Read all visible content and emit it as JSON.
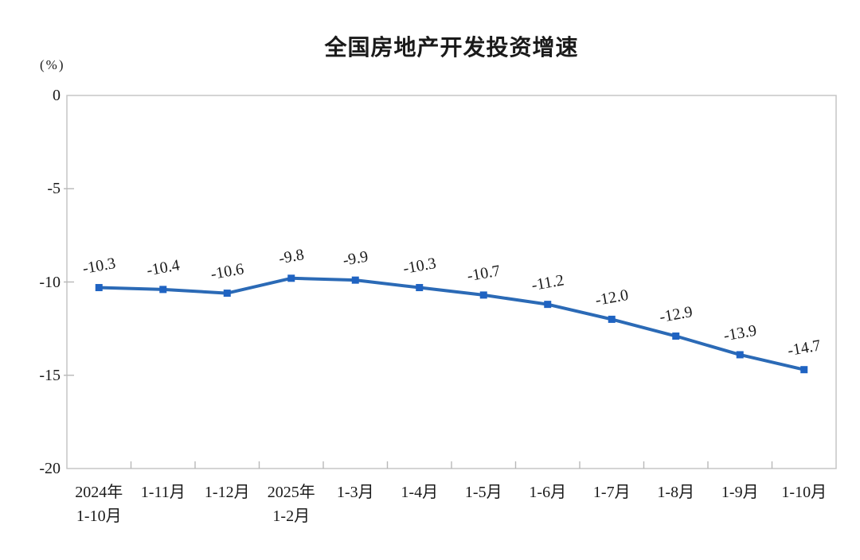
{
  "page": {
    "background_color": "#ffffff"
  },
  "chart_data": {
    "type": "line",
    "title": "全国房地产开发投资增速",
    "ylabel": "(%)",
    "xlabel": "",
    "categories": [
      {
        "line1": "2024年",
        "line2": "1-10月"
      },
      {
        "line1": "1-11月",
        "line2": ""
      },
      {
        "line1": "1-12月",
        "line2": ""
      },
      {
        "line1": "2025年",
        "line2": "1-2月"
      },
      {
        "line1": "1-3月",
        "line2": ""
      },
      {
        "line1": "1-4月",
        "line2": ""
      },
      {
        "line1": "1-5月",
        "line2": ""
      },
      {
        "line1": "1-6月",
        "line2": ""
      },
      {
        "line1": "1-7月",
        "line2": ""
      },
      {
        "line1": "1-8月",
        "line2": ""
      },
      {
        "line1": "1-9月",
        "line2": ""
      },
      {
        "line1": "1-10月",
        "line2": ""
      }
    ],
    "series": [
      {
        "name": "全国房地产开发投资增速",
        "values": [
          -10.3,
          -10.4,
          -10.6,
          -9.8,
          -9.9,
          -10.3,
          -10.7,
          -11.2,
          -12.0,
          -12.9,
          -13.9,
          -14.7
        ],
        "data_labels": [
          "-10.3",
          "-10.4",
          "-10.6",
          "-9.8",
          "-9.9",
          "-10.3",
          "-10.7",
          "-11.2",
          "-12.0",
          "-12.9",
          "-13.9",
          "-14.7"
        ]
      }
    ],
    "ylim": [
      -20,
      0
    ],
    "yticks": [
      0,
      -5,
      -10,
      -15,
      -20
    ],
    "ytick_labels": [
      "0",
      "-5",
      "-10",
      "-15",
      "-20"
    ],
    "grid": false,
    "legend_position": "none",
    "marker_style": "square",
    "colors": {
      "line": "#2b6ab6",
      "marker": "#1f63c2",
      "axis_border": "#c2c2c2",
      "tick": "#b8b8b8",
      "text": "#1a1a1a"
    }
  }
}
